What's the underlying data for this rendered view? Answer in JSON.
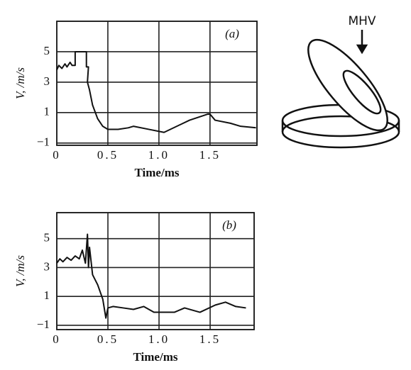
{
  "chart_data": [
    {
      "type": "line",
      "annotation": "(a)",
      "xlabel": "Time/ms",
      "ylabel": "V, /m/s",
      "xlim": [
        0,
        1.96
      ],
      "xticks": [
        0,
        0.5,
        {
          "value": 1.0,
          "label": "1.0"
        },
        1.5
      ],
      "ylim": [
        -1.15,
        7
      ],
      "yticks": [
        {
          "value": -1,
          "label": "−1"
        },
        1,
        3,
        5
      ],
      "grid": true,
      "series": [
        {
          "color": "#111111",
          "x": [
            0,
            0.02,
            0.05,
            0.08,
            0.1,
            0.13,
            0.15,
            0.18,
            0.18,
            0.2,
            0.22,
            0.25,
            0.28,
            0.29,
            0.29,
            0.31,
            0.3,
            0.32,
            0.35,
            0.4,
            0.45,
            0.5,
            0.6,
            0.7,
            0.75,
            0.9,
            1.05,
            1.3,
            1.48,
            1.5,
            1.55,
            1.7,
            1.8,
            1.95
          ],
          "values": [
            3.8,
            4.1,
            3.9,
            4.2,
            4.0,
            4.3,
            4.1,
            4.1,
            5,
            5,
            5,
            5,
            5,
            5,
            4,
            4,
            3,
            2.5,
            1.5,
            0.6,
            0.1,
            -0.1,
            -0.1,
            0,
            0.1,
            -0.1,
            -0.3,
            0.5,
            0.9,
            0.9,
            0.5,
            0.3,
            0.1,
            0
          ]
        }
      ]
    },
    {
      "type": "line",
      "annotation": "(b)",
      "xlabel": "Time/ms",
      "ylabel": "V, /m/s",
      "xlim": [
        0,
        1.93
      ],
      "xticks": [
        0,
        0.5,
        {
          "value": 1.0,
          "label": "1.0"
        },
        1.5
      ],
      "ylim": [
        -1.3,
        6.8
      ],
      "yticks": [
        {
          "value": -1,
          "label": "−1"
        },
        1,
        3,
        5
      ],
      "grid": true,
      "series": [
        {
          "color": "#111111",
          "x": [
            0,
            0.03,
            0.06,
            0.1,
            0.14,
            0.18,
            0.22,
            0.25,
            0.28,
            0.3,
            0.31,
            0.32,
            0.35,
            0.4,
            0.45,
            0.48,
            0.5,
            0.55,
            0.65,
            0.75,
            0.85,
            0.95,
            1.15,
            1.25,
            1.4,
            1.55,
            1.65,
            1.75,
            1.85
          ],
          "values": [
            3.3,
            3.6,
            3.4,
            3.7,
            3.5,
            3.8,
            3.6,
            4.2,
            3.3,
            5.3,
            3.0,
            4.4,
            2.5,
            1.8,
            0.8,
            -0.5,
            0.2,
            0.3,
            0.2,
            0.1,
            0.3,
            -0.1,
            -0.1,
            0.2,
            -0.1,
            0.4,
            0.6,
            0.3,
            0.2
          ]
        }
      ]
    }
  ],
  "diagram": {
    "label": "MHV"
  }
}
